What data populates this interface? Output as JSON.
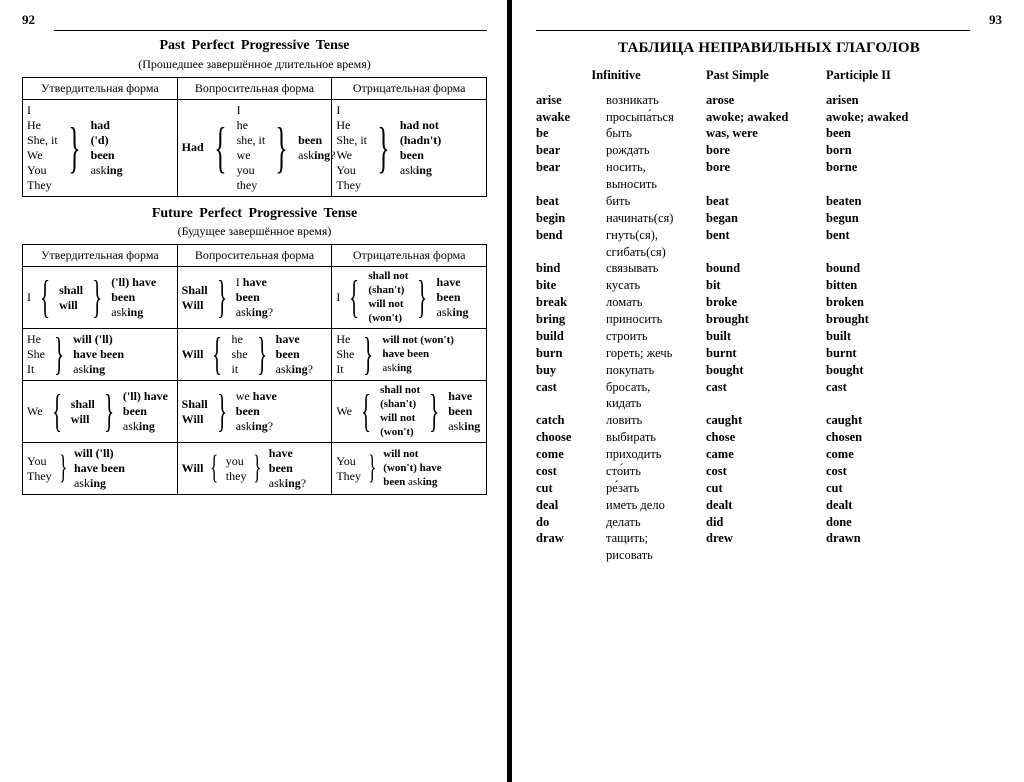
{
  "page_left_num": "92",
  "page_right_num": "93",
  "colors": {
    "text": "#000000",
    "bg": "#ffffff",
    "rule": "#000000"
  },
  "typography": {
    "body_family": "Times New Roman",
    "body_size_pt": 9,
    "title_size_pt": 11
  },
  "tense_past": {
    "title": "Past Perfect Progressive Tense",
    "subtitle": "(Прошедшее завершённое длительное время)",
    "columns": [
      "Утвердительная форма",
      "Вопросительная форма",
      "Отрицательная форма"
    ],
    "pronouns": [
      "I",
      "He",
      "She, it",
      "We",
      "You",
      "They"
    ],
    "pronouns_q_lower": [
      "I",
      "he",
      "she, it",
      "we",
      "you",
      "they"
    ],
    "affirm": [
      "had",
      "('d)",
      "been",
      "asking"
    ],
    "question_aux": "Had",
    "question_tail": [
      "been",
      "asking?"
    ],
    "negative": [
      "had not",
      "(hadn't)",
      "been",
      "asking"
    ]
  },
  "tense_future": {
    "title": "Future Perfect Progressive Tense",
    "subtitle": "(Будущее завершённое время)",
    "columns": [
      "Утвердительная форма",
      "Вопросительная форма",
      "Отрицательная форма"
    ],
    "rows": [
      {
        "affirm_pron": "I",
        "affirm_aux": [
          "shall",
          "will"
        ],
        "affirm_tail": [
          "('ll) have",
          "been",
          "asking"
        ],
        "q_aux": [
          "Shall",
          "Will"
        ],
        "q_tail": [
          "I have",
          "been",
          "asking?"
        ],
        "neg_pron": "I",
        "neg_aux": [
          "shall not",
          "(shan't)",
          "will not",
          "(won't)"
        ],
        "neg_tail": [
          "have",
          "been",
          "asking"
        ]
      },
      {
        "affirm_pron": [
          "He",
          "She",
          "It"
        ],
        "affirm_tail": [
          "will ('ll)",
          "have been",
          "asking"
        ],
        "q_aux": "Will",
        "q_pron": [
          "he",
          "she",
          "it"
        ],
        "q_tail": [
          "have",
          "been",
          "asking?"
        ],
        "neg_pron": [
          "He",
          "She",
          "It"
        ],
        "neg_tail": [
          "will not (won't)",
          "have been",
          "asking"
        ]
      },
      {
        "affirm_pron": "We",
        "affirm_aux": [
          "shall",
          "will"
        ],
        "affirm_tail": [
          "('ll) have",
          "been",
          "asking"
        ],
        "q_aux": [
          "Shall",
          "Will"
        ],
        "q_tail": [
          "we have",
          "been",
          "asking?"
        ],
        "neg_pron": "We",
        "neg_aux": [
          "shall not",
          "(shan't)",
          "will not",
          "(won't)"
        ],
        "neg_tail": [
          "have",
          "been",
          "asking"
        ]
      },
      {
        "affirm_pron": [
          "You",
          "They"
        ],
        "affirm_tail": [
          "will ('ll)",
          "have been",
          "asking"
        ],
        "q_aux": "Will",
        "q_pron": [
          "you",
          "they"
        ],
        "q_tail": [
          "have",
          "been",
          "asking?"
        ],
        "neg_pron": [
          "You",
          "They"
        ],
        "neg_tail": [
          "will not",
          "(won't) have",
          "been asking"
        ]
      }
    ]
  },
  "verbs_title": "ТАБЛИЦА НЕПРАВИЛЬНЫХ ГЛАГОЛОВ",
  "verbs_headers": [
    "Infinitive",
    "Past Simple",
    "Participle II"
  ],
  "verbs": [
    [
      "arise",
      "возникать",
      "arose",
      "arisen"
    ],
    [
      "awake",
      "просыпа́ться",
      "awoke; awaked",
      "awoke; awaked"
    ],
    [
      "be",
      "быть",
      "was, were",
      "been"
    ],
    [
      "bear",
      "рождать",
      "bore",
      "born"
    ],
    [
      "bear",
      "носить,",
      "bore",
      "borne"
    ],
    [
      "",
      "выносить",
      "",
      ""
    ],
    [
      "beat",
      "бить",
      "beat",
      "beaten"
    ],
    [
      "begin",
      "начинать(ся)",
      "began",
      "begun"
    ],
    [
      "bend",
      "гнуть(ся),",
      "bent",
      "bent"
    ],
    [
      "",
      "сгибать(ся)",
      "",
      ""
    ],
    [
      "bind",
      "связывать",
      "bound",
      "bound"
    ],
    [
      "bite",
      "кусать",
      "bit",
      "bitten"
    ],
    [
      "break",
      "ломать",
      "broke",
      "broken"
    ],
    [
      "bring",
      "приносить",
      "brought",
      "brought"
    ],
    [
      "build",
      "строить",
      "built",
      "built"
    ],
    [
      "burn",
      "гореть; жечь",
      "burnt",
      "burnt"
    ],
    [
      "buy",
      "покупать",
      "bought",
      "bought"
    ],
    [
      "cast",
      "бросать,",
      "cast",
      "cast"
    ],
    [
      "",
      "кидать",
      "",
      ""
    ],
    [
      "catch",
      "ловить",
      "caught",
      "caught"
    ],
    [
      "choose",
      "выбирать",
      "chose",
      "chosen"
    ],
    [
      "come",
      "приходить",
      "came",
      "come"
    ],
    [
      "cost",
      "сто́ить",
      "cost",
      "cost"
    ],
    [
      "cut",
      "ре́зать",
      "cut",
      "cut"
    ],
    [
      "deal",
      "иметь дело",
      "dealt",
      "dealt"
    ],
    [
      "do",
      "делать",
      "did",
      "done"
    ],
    [
      "draw",
      "тащить;",
      "drew",
      "drawn"
    ],
    [
      "",
      "рисовать",
      "",
      ""
    ]
  ]
}
